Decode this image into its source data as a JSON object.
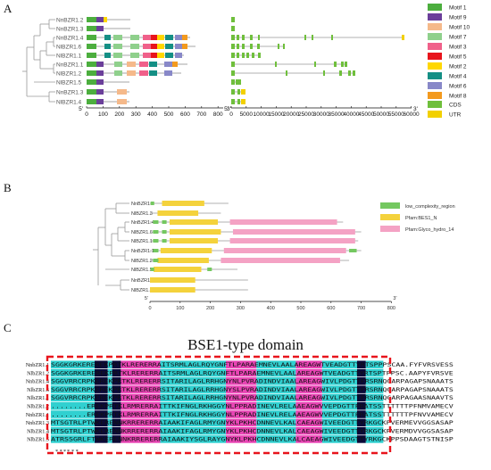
{
  "panels": {
    "a": "A",
    "b": "B",
    "c": "C"
  },
  "colors": {
    "motif_1": "#4cae3e",
    "motif_9": "#6b3f9a",
    "motif_10": "#f5b98a",
    "motif_7": "#8fd08c",
    "motif_3": "#f0608a",
    "motif_5": "#e8141c",
    "motif_2": "#ffd700",
    "motif_4": "#148f85",
    "motif_6": "#8888c8",
    "motif_8": "#f39a1e",
    "cds": "#6fbf3c",
    "utr": "#f2d000",
    "low_complexity": "#74c860",
    "bes1": "#f4d23c",
    "glyco": "#f4a2c4",
    "align_black": "#0a0a3a",
    "align_pink": "#e844b4",
    "align_cyan": "#30d0d0",
    "box_red": "#e8141c"
  },
  "panel_a": {
    "genes": [
      "NnBZR1.2",
      "NnBZR1.3",
      "NnBZR1.4",
      "NlBZR1.6",
      "NlBZR1.1",
      "NnBZR1.1",
      "NlBZR1.2",
      "NlBZR1.5",
      "NnBZR1.3",
      "NlBZR1.4"
    ],
    "motif_axis": {
      "start_label": "5'",
      "end_label": "3'",
      "ticks": [
        "0",
        "100",
        "200",
        "300",
        "400",
        "500",
        "600",
        "700",
        "800"
      ]
    },
    "gene_axis": {
      "start_label": "5'",
      "end_label": "3'",
      "ticks": [
        "0",
        "5000",
        "10000",
        "15000",
        "20000",
        "25000",
        "30000",
        "35000",
        "40000",
        "45000",
        "50000",
        "55000",
        "60000"
      ]
    },
    "motif_legend": [
      "Motif 1",
      "Motif 9",
      "Motif 10",
      "Motif 7",
      "Motif 3",
      "Motif 5",
      "Motif 2",
      "Motif 4",
      "Motif 6",
      "Motif 8"
    ],
    "structure_legend": [
      "CDS",
      "UTR"
    ]
  },
  "panel_b": {
    "genes": [
      "NnBZR1.2",
      "NlBZR1.3",
      "NnBZR1.4",
      "NlBZR1.6",
      "NlBZR1.1",
      "NnBZR1.1",
      "NlBZR1.2",
      "NlBZR1.5",
      "NnBZR1.3",
      "NlBZR1.4"
    ],
    "axis": {
      "start_label": "5'",
      "end_label": "3'",
      "ticks": [
        "0",
        "100",
        "200",
        "300",
        "400",
        "500",
        "600",
        "700",
        "800"
      ]
    },
    "legend": [
      "low_complexity_region",
      "Pfam:BES1_N",
      "Pfam:Glyco_hydro_14"
    ]
  },
  "panel_c": {
    "title": "BSE1-type domain",
    "rows": [
      {
        "name": "NnbZR1.1",
        "seq": "SGGKGRKEREREKPRTKLRERERRAITSRMLAGLRQYGNFTLPARAEMNEVLAALAREAGWTVEADGTTYRTSPPPSCAA.FYFVRSVESS"
      },
      {
        "name": "NlbZR1.2",
        "seq": "SGGKGRKEREREKPRTKLRERERRAITSRMLAGLRQYGNFTLPARAEMNEVLAALAREAGWTVEADGTTYRTSPTPPSC.AAPYFVRSVE"
      },
      {
        "name": "NnbZR1.4",
        "seq": "SGGVRRCRPKEREKPRTKLRERERRSITARILAGLRRHGNYNLPVRADINDVIAALAREAGWIVLPDGTTFRSRNQGARPAGAPSNAAATS"
      },
      {
        "name": "NlbZR1.6",
        "seq": "SGGVRRCRPKEREKPRTKLRERERRSITARILAGLRRHGNYSLPVRADINDVIAALAREAGWIVLPDGTTFRSRNQGARPAGAPSNAAATS"
      },
      {
        "name": "NlbZR1.1",
        "seq": "SGGVRRCRPKEREKPRTKLRERERRSITARILAGLRRHGNYNLPVRADINDVIAALAREAGWIVLPDGTTFRSRNQGARPAGAASNAAVTS"
      },
      {
        "name": "NlbZR1.2",
        "seq": "........EREKPRTKLRMRERRAITTKIFNGLRKHGGYNLPPRADINEVLRELAAEAGWVVEPDGTTFRATSSTTTTTTPFNMVAMECV"
      },
      {
        "name": "NnbZR1.1",
        "seq": "........EREKPRTKLRMRERRAITTKIFNGLRKHGGYNLPPRADINEVLRELAAEAGWVVEPDGTTFRATSSTTTTTTPFNVVAMECV"
      },
      {
        "name": "NnbZR1.3",
        "seq": "MTSGTRLPTWKERENNKRRERERRAIAAKIFAGLRMYGNYKLPKHCDNNEVLKALCAEAGWIVEEDGTTYRKGCKPVERMEVVGGSASAP"
      },
      {
        "name": "NlbZR1.4",
        "seq": "MTSGTRLPTWKERENNKRRERERRAIAAKIFAGLRMYGNYKLPKHCDNNEVLKALCAEAGWIVEEDGTTYRKGCKPVERMDVVGGSASAP"
      },
      {
        "name": "NlbZR1.5",
        "seq": "ATRSSGRLFTWKERENNKRRERERRAIAAKIYSGLRAYGNYKLPKHCDNNEVLKALCAEAGWIVEEDGTTYRKGCKPPSDAAGTSTNISP"
      }
    ],
    "conservation_marks": [
      "* *",
      "*",
      "*",
      "* *"
    ]
  }
}
